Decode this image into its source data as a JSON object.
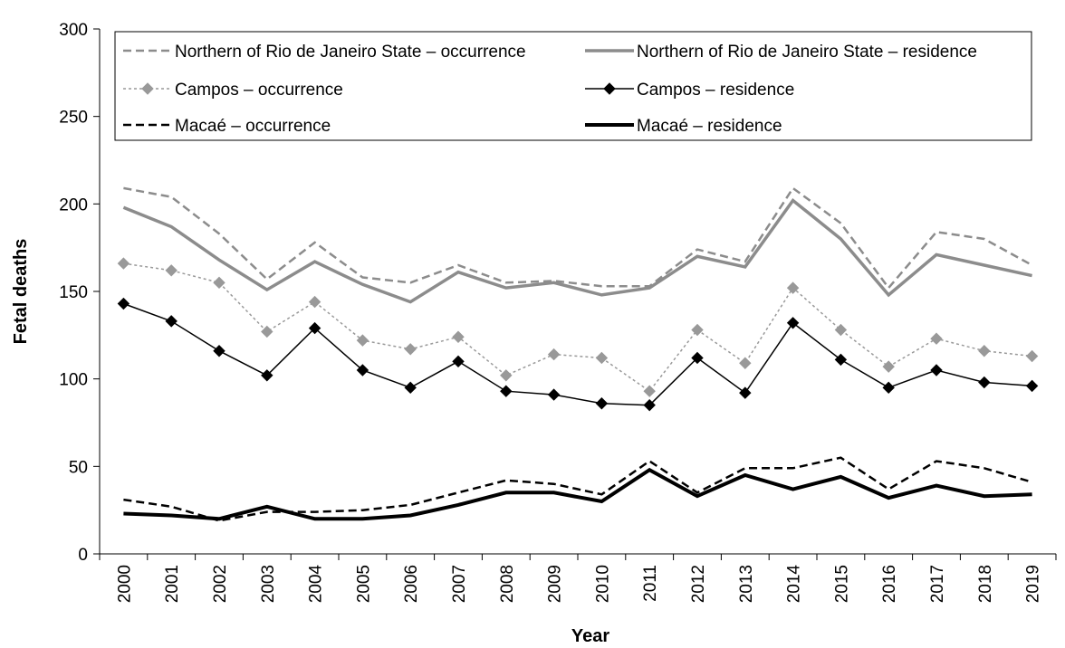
{
  "chart_data": {
    "type": "line",
    "title": "",
    "xlabel": "Year",
    "ylabel": "Fetal deaths",
    "ylim": [
      0,
      300
    ],
    "yticks": [
      0,
      50,
      100,
      150,
      200,
      250,
      300
    ],
    "grid": false,
    "legend_position": "top",
    "categories": [
      "2000",
      "2001",
      "2002",
      "2003",
      "2004",
      "2005",
      "2006",
      "2007",
      "2008",
      "2009",
      "2010",
      "2011",
      "2012",
      "2013",
      "2014",
      "2015",
      "2016",
      "2017",
      "2018",
      "2019"
    ],
    "series": [
      {
        "name": "Northern of Rio de Janeiro State – occurrence",
        "color": "#8c8c8c",
        "style": "dashed-thick",
        "marker": "none",
        "values": [
          209,
          204,
          183,
          157,
          178,
          158,
          155,
          165,
          155,
          156,
          153,
          153,
          174,
          167,
          209,
          189,
          152,
          184,
          180,
          165
        ]
      },
      {
        "name": "Northern of Rio de Janeiro State – residence",
        "color": "#8c8c8c",
        "style": "solid-thick",
        "marker": "none",
        "values": [
          198,
          187,
          168,
          151,
          167,
          154,
          144,
          161,
          152,
          155,
          148,
          152,
          170,
          164,
          202,
          180,
          148,
          171,
          165,
          159
        ]
      },
      {
        "name": "Campos – occurrence",
        "color": "#999999",
        "style": "dotted",
        "marker": "diamond",
        "values": [
          166,
          162,
          155,
          127,
          144,
          122,
          117,
          124,
          102,
          114,
          112,
          93,
          128,
          109,
          152,
          128,
          107,
          123,
          116,
          113
        ]
      },
      {
        "name": "Campos – residence",
        "color": "#000000",
        "style": "solid-thin",
        "marker": "diamond",
        "values": [
          143,
          133,
          116,
          102,
          129,
          105,
          95,
          110,
          93,
          91,
          86,
          85,
          112,
          92,
          132,
          111,
          95,
          105,
          98,
          96
        ]
      },
      {
        "name": "Macaé – occurrence",
        "color": "#000000",
        "style": "dashed-thick",
        "marker": "none",
        "values": [
          31,
          27,
          19,
          24,
          24,
          25,
          28,
          35,
          42,
          40,
          34,
          53,
          35,
          49,
          49,
          55,
          37,
          53,
          49,
          41
        ]
      },
      {
        "name": "Macaé – residence",
        "color": "#000000",
        "style": "solid-thick",
        "marker": "none",
        "values": [
          23,
          22,
          20,
          27,
          20,
          20,
          22,
          28,
          35,
          35,
          30,
          48,
          33,
          45,
          37,
          44,
          32,
          39,
          33,
          34
        ]
      }
    ]
  }
}
